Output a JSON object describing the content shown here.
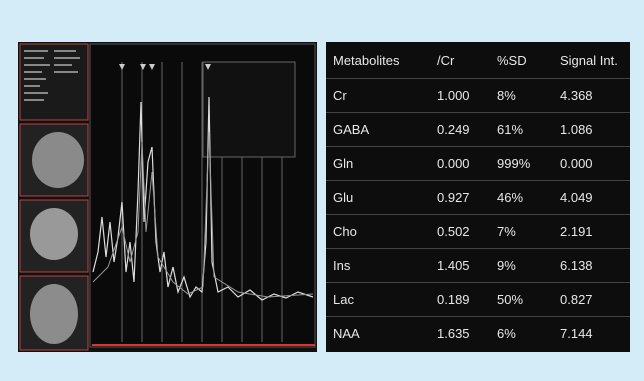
{
  "table": {
    "header": [
      "Metabolites",
      "/Cr",
      "%SD",
      "Signal Int."
    ],
    "rows": [
      [
        "Cr",
        "1.000",
        "8%",
        "4.368"
      ],
      [
        "GABA",
        "0.249",
        "61%",
        "1.086"
      ],
      [
        "Gln",
        "0.000",
        "999%",
        "0.000"
      ],
      [
        "Glu",
        "0.927",
        "46%",
        "4.049"
      ],
      [
        "Cho",
        "0.502",
        "7%",
        "2.191"
      ],
      [
        "Ins",
        "1.405",
        "9%",
        "6.138"
      ],
      [
        "Lac",
        "0.189",
        "50%",
        "0.827"
      ],
      [
        "NAA",
        "1.635",
        "6%",
        "7.144"
      ]
    ]
  }
}
